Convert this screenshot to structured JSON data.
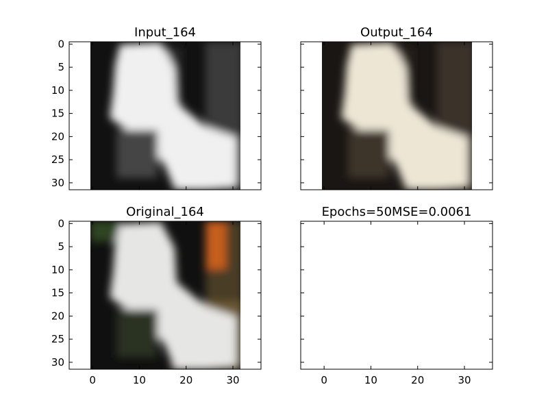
{
  "chart_data": [
    {
      "type": "heatmap",
      "title": "Input_164",
      "image": {
        "rows": 32,
        "cols": 32,
        "content": "grayscale input image of a white cat on dark background",
        "palette": [
          "#0e0e0e",
          "#3a3a3a",
          "#7a7a7a",
          "#dcdcdc",
          "#f3f3f3"
        ]
      },
      "x_ticks": [],
      "y_ticks": [
        "0",
        "5",
        "10",
        "15",
        "20",
        "25",
        "30"
      ],
      "xlim": [
        -5,
        36
      ],
      "ylim": [
        31.5,
        -0.5
      ]
    },
    {
      "type": "heatmap",
      "title": "Output_164",
      "image": {
        "rows": 32,
        "cols": 32,
        "content": "colorized output image of a white cat (cream tones) on dark background",
        "palette": [
          "#1c1714",
          "#3b3129",
          "#8a7d68",
          "#e3dccb",
          "#efe9da"
        ]
      },
      "x_ticks": [],
      "y_ticks": [],
      "xlim": [
        -5,
        36
      ],
      "ylim": [
        31.5,
        -0.5
      ]
    },
    {
      "type": "heatmap",
      "title": "Original_164",
      "image": {
        "rows": 32,
        "cols": 32,
        "content": "original color image of a white cat on dark background with olive floor and orange object",
        "palette": [
          "#101010",
          "#2b3a22",
          "#c8601a",
          "#6e5a33",
          "#e8e8e6"
        ]
      },
      "x_ticks": [
        "0",
        "10",
        "20",
        "30"
      ],
      "y_ticks": [
        "0",
        "5",
        "10",
        "15",
        "20",
        "25",
        "30"
      ],
      "xlim": [
        -5,
        36
      ],
      "ylim": [
        31.5,
        -0.5
      ]
    },
    {
      "type": "heatmap",
      "title": "Epochs=50MSE=0.0061",
      "image": null,
      "x_ticks": [
        "0",
        "10",
        "20",
        "30"
      ],
      "y_ticks": [],
      "xlim": [
        -5,
        36
      ],
      "ylim": [
        31.5,
        -0.5
      ]
    }
  ]
}
